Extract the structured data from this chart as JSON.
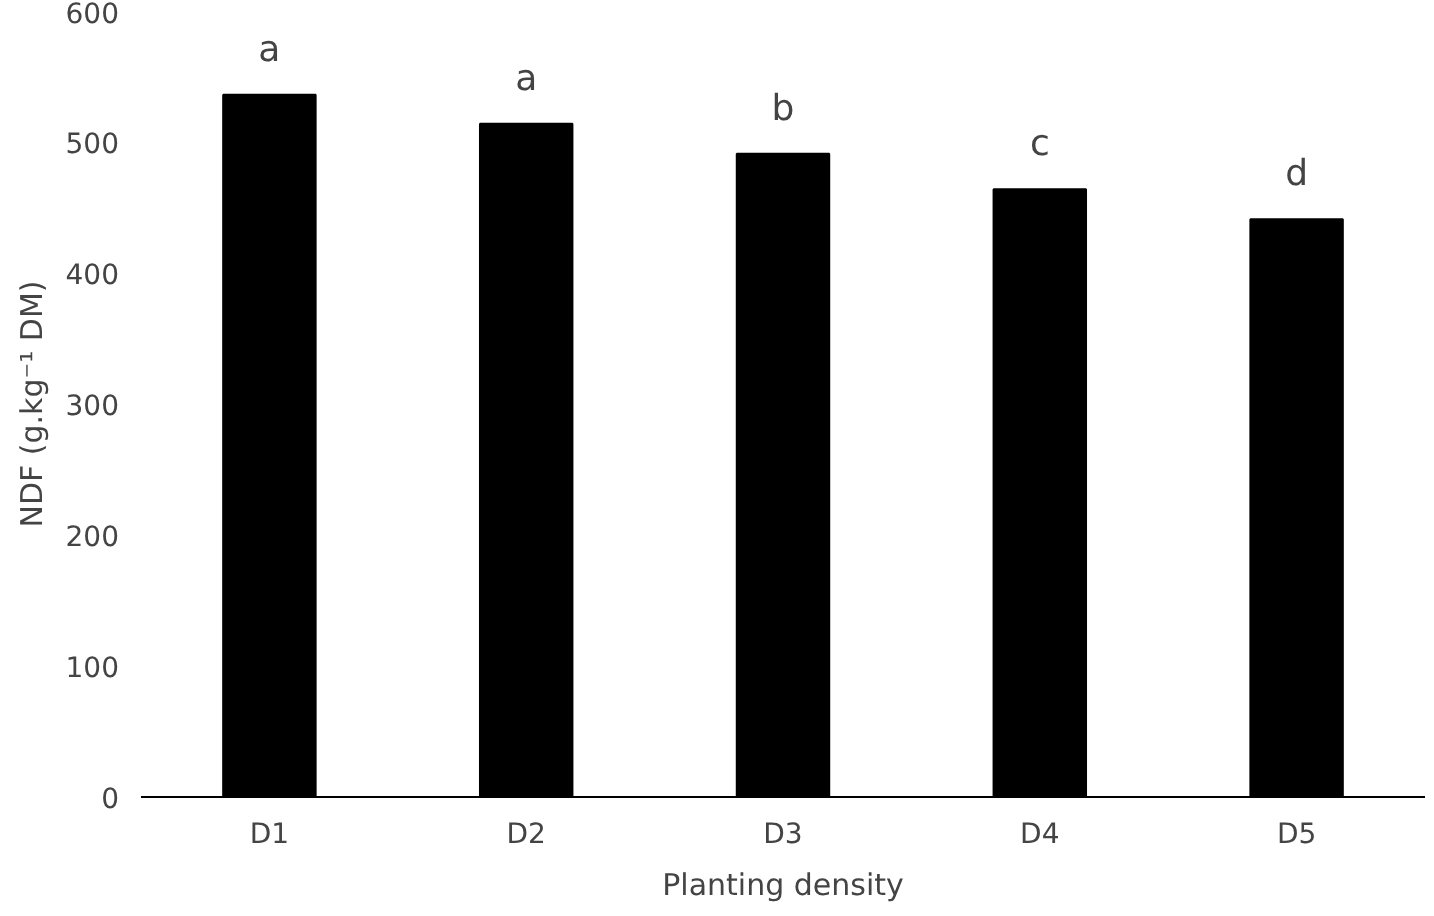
{
  "chart_data": {
    "type": "bar",
    "xlabel": "Planting density",
    "ylabel": "NDF (g.kg⁻¹ DM)",
    "categories": [
      "D1",
      "D2",
      "D3",
      "D4",
      "D5"
    ],
    "values": [
      536,
      514,
      491,
      464,
      441
    ],
    "color": "#000000",
    "ylim": [
      0,
      600
    ],
    "yticks": [
      0,
      100,
      200,
      300,
      400,
      500,
      600
    ],
    "grid": false,
    "annotations": [
      {
        "text": "a",
        "x": "D1",
        "y": 536
      },
      {
        "text": "a",
        "x": "D2",
        "y": 514
      },
      {
        "text": "b",
        "x": "D3",
        "y": 491
      },
      {
        "text": "c",
        "x": "D4",
        "y": 464
      },
      {
        "text": "d",
        "x": "D5",
        "y": 441
      }
    ]
  }
}
